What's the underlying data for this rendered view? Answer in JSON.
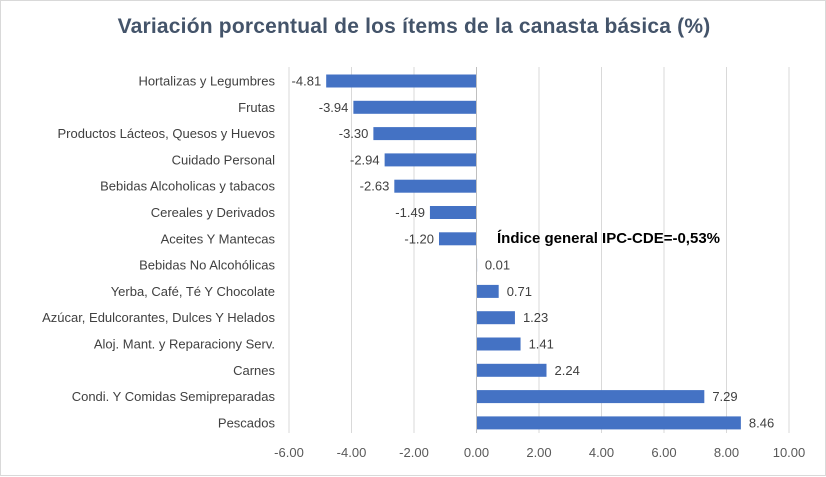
{
  "chart_data": {
    "type": "bar",
    "orientation": "horizontal",
    "title": "Variación porcentual de los ítems de la canasta básica (%)",
    "categories": [
      "Hortalizas y Legumbres",
      "Frutas",
      "Productos Lácteos, Quesos y Huevos",
      "Cuidado Personal",
      "Bebidas Alcoholicas y tabacos",
      "Cereales y Derivados",
      "Aceites Y Mantecas",
      "Bebidas No Alcohólicas",
      "Yerba, Café, Té Y Chocolate",
      "Azúcar, Edulcorantes, Dulces Y Helados",
      "Aloj. Mant. y Reparaciony Serv.",
      "Carnes",
      "Condi. Y Comidas Semipreparadas",
      "Pescados"
    ],
    "values": [
      -4.81,
      -3.94,
      -3.3,
      -2.94,
      -2.63,
      -1.49,
      -1.2,
      0.01,
      0.71,
      1.23,
      1.41,
      2.24,
      7.29,
      8.46
    ],
    "value_labels": [
      "-4.81",
      "-3.94",
      "-3.30",
      "-2.94",
      "-2.63",
      "-1.49",
      "-1.20",
      "0.01",
      "0.71",
      "1.23",
      "1.41",
      "2.24",
      "7.29",
      "8.46"
    ],
    "xlim": [
      -6,
      10
    ],
    "x_ticks": [
      -6,
      -4,
      -2,
      0,
      2,
      4,
      6,
      8,
      10
    ],
    "x_tick_labels": [
      "-6.00",
      "-4.00",
      "-2.00",
      "0.00",
      "2.00",
      "4.00",
      "6.00",
      "8.00",
      "10.00"
    ],
    "grid": true,
    "legend": "none",
    "bar_color": "#4472c4",
    "annotation": "Índice general IPC-CDE=-0,53%"
  }
}
